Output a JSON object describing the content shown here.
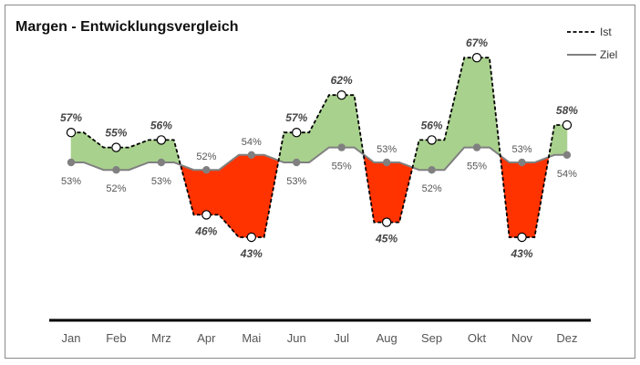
{
  "chart_data": {
    "type": "line",
    "title": "Margen - Entwicklungsvergleich",
    "categories": [
      "Jan",
      "Feb",
      "Mrz",
      "Apr",
      "Mai",
      "Jun",
      "Jul",
      "Aug",
      "Sep",
      "Okt",
      "Nov",
      "Dez"
    ],
    "series": [
      {
        "name": "Ist",
        "values": [
          57,
          55,
          56,
          46,
          43,
          57,
          62,
          45,
          56,
          67,
          43,
          58
        ],
        "labels": [
          "57%",
          "55%",
          "56%",
          "46%",
          "43%",
          "57%",
          "62%",
          "45%",
          "56%",
          "67%",
          "43%",
          "58%"
        ],
        "style": "dashed",
        "color": "#000000"
      },
      {
        "name": "Ziel",
        "values": [
          53,
          52,
          53,
          52,
          54,
          53,
          55,
          53,
          52,
          55,
          53,
          54
        ],
        "labels": [
          "53%",
          "52%",
          "53%",
          "52%",
          "54%",
          "53%",
          "55%",
          "53%",
          "52%",
          "55%",
          "53%",
          "54%"
        ],
        "style": "solid",
        "color": "#808080"
      }
    ],
    "fill_positive_color": "#a9d18e",
    "fill_negative_color": "#ff3300",
    "legend_position": "top-right",
    "grid": false
  }
}
